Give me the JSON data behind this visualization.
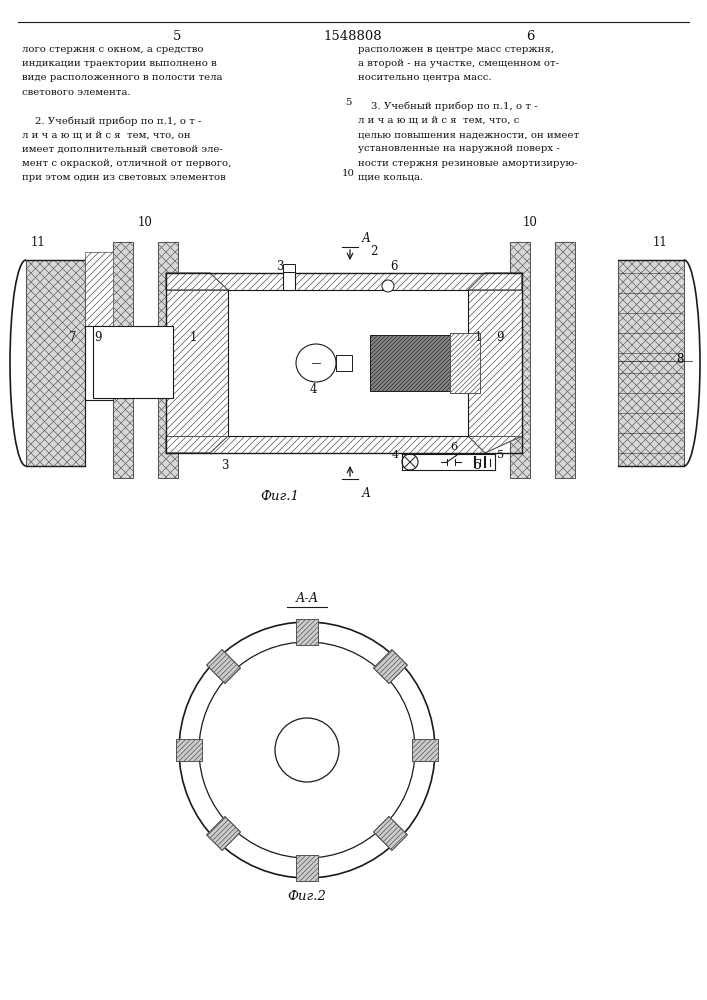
{
  "page_number_left": "5",
  "page_number_center": "1548808",
  "page_number_right": "6",
  "fig1_label": "Фиг.1",
  "fig2_label": "Фиг.2",
  "section_label": "А-А",
  "bg_color": "#ffffff",
  "line_color": "#1a1a1a",
  "hatch_color": "#555555",
  "text_color": "#111111",
  "left_lines": [
    "лого стержня с окном, а средство",
    "индикации траектории выполнено в",
    "виде расположенного в полости тела",
    "светового элемента.",
    "",
    "    2. Учебный прибор по п.1, о т -",
    "л и ч а ю щ и й с я  тем, что, он",
    "имеет дополнительный световой эле-",
    "мент с окраской, отличной от первого,",
    "при этом один из световых элементов"
  ],
  "right_lines": [
    "расположен в центре масс стержня,",
    "а второй - на участке, смещенном от-",
    "носительно центра масс.",
    "",
    "    3. Учебный прибор по п.1, о т -",
    "л и ч а ю щ и й с я  тем, что, с",
    "целью повышения надежности, он имеет",
    "установленные на наружной поверх -",
    "ности стержня резиновые амортизирую-",
    "щие кольца."
  ]
}
